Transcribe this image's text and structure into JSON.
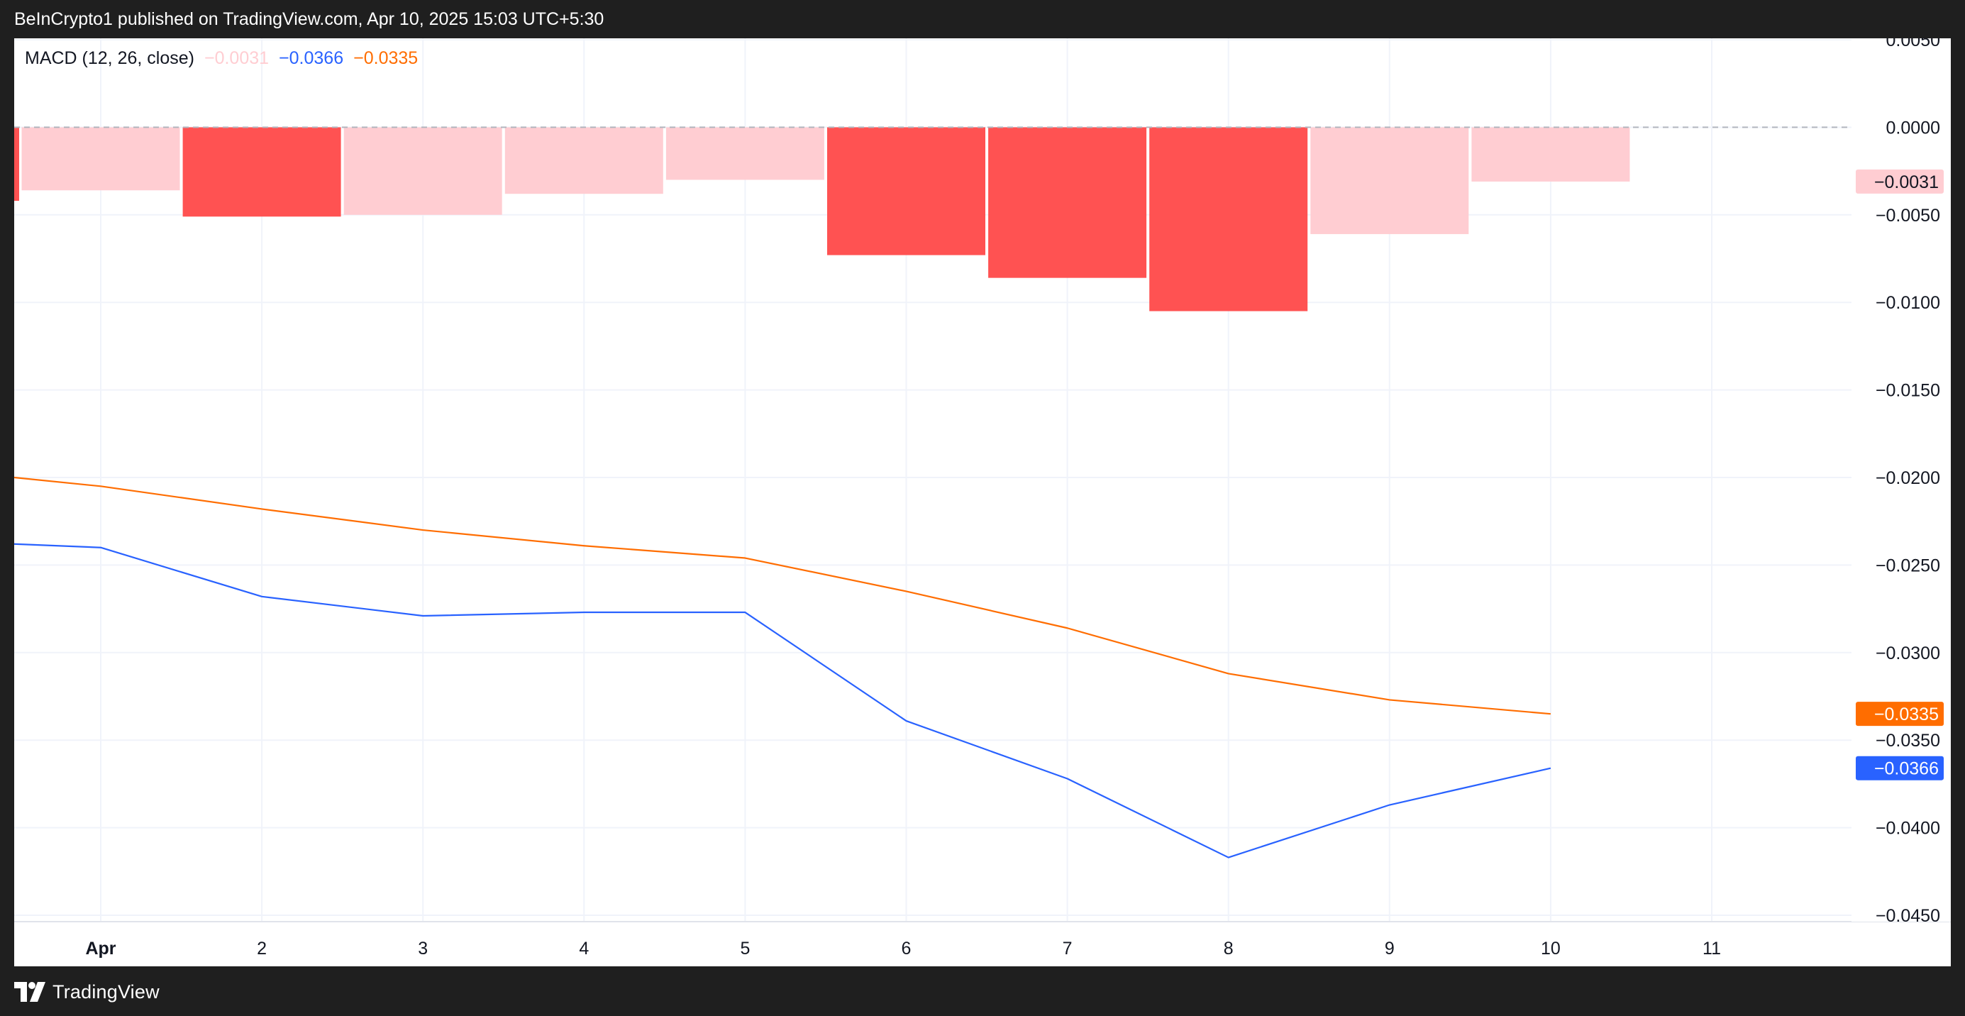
{
  "header": {
    "published_text": "BeInCrypto1 published on TradingView.com, Apr 10, 2025 15:03 UTC+5:30"
  },
  "footer": {
    "brand": "TradingView",
    "logo_icon": "tradingview-logo-icon"
  },
  "legend": {
    "name": "MACD (12, 26, close)",
    "histogram_value": "−0.0031",
    "macd_value": "−0.0366",
    "signal_value": "−0.0335"
  },
  "colors": {
    "histogram_strong": "#ff5252",
    "histogram_weak": "#ffcdd2",
    "macd": "#2962ff",
    "signal": "#ff6d00",
    "grid": "#f0f3fa",
    "zero_line": "#b2b5be",
    "axis_text": "#131722"
  },
  "chart_data": {
    "type": "bar",
    "title": "",
    "xlabel": "",
    "ylabel": "",
    "categories": [
      "Apr",
      "2",
      "3",
      "4",
      "5",
      "6",
      "7",
      "8",
      "9",
      "10"
    ],
    "x_tick_labels": [
      "Apr",
      "2",
      "3",
      "4",
      "5",
      "6",
      "7",
      "8",
      "9",
      "10",
      "11"
    ],
    "ylim": [
      -0.045,
      0.005
    ],
    "y_tick_labels": [
      "0.0050",
      "0.0000",
      "−0.0050",
      "−0.0100",
      "−0.0150",
      "−0.0200",
      "−0.0250",
      "−0.0300",
      "−0.0350",
      "−0.0400",
      "−0.0450"
    ],
    "y_ticks": [
      0.005,
      0,
      -0.005,
      -0.01,
      -0.015,
      -0.02,
      -0.025,
      -0.03,
      -0.035,
      -0.04,
      -0.045
    ],
    "series": [
      {
        "name": "Histogram",
        "type": "bar",
        "values": [
          -0.0036,
          -0.0051,
          -0.005,
          -0.0038,
          -0.003,
          -0.0073,
          -0.0086,
          -0.0105,
          -0.0061,
          -0.0031
        ],
        "color_kind": [
          "weak",
          "strong",
          "weak",
          "weak",
          "weak",
          "strong",
          "strong",
          "strong",
          "weak",
          "weak"
        ]
      },
      {
        "name": "MACD",
        "type": "line",
        "values": [
          -0.024,
          -0.0268,
          -0.0279,
          -0.0277,
          -0.0277,
          -0.0339,
          -0.0372,
          -0.0417,
          -0.0387,
          -0.0366
        ]
      },
      {
        "name": "Signal",
        "type": "line",
        "values": [
          -0.0205,
          -0.0218,
          -0.023,
          -0.0239,
          -0.0246,
          -0.0265,
          -0.0286,
          -0.0312,
          -0.0327,
          -0.0335
        ]
      }
    ],
    "price_labels": [
      {
        "series": "Histogram",
        "value": -0.0031,
        "text": "−0.0031"
      },
      {
        "series": "Signal",
        "value": -0.0335,
        "text": "−0.0335"
      },
      {
        "series": "MACD",
        "value": -0.0366,
        "text": "−0.0366"
      }
    ],
    "grid": true,
    "legend_position": "top-left"
  }
}
